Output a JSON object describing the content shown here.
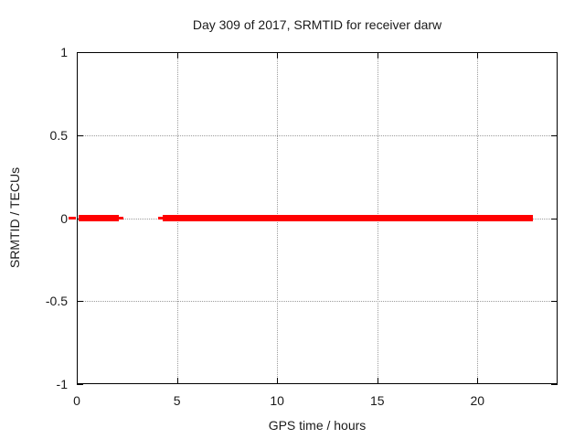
{
  "chart": {
    "title": "Day 309 of 2017, SRMTID for receiver darw",
    "xlabel": "GPS time / hours",
    "ylabel": "SRMTID / TECUs"
  },
  "chart_data": {
    "type": "line",
    "title": "Day 309 of 2017, SRMTID for receiver darw",
    "xlabel": "GPS time / hours",
    "ylabel": "SRMTID / TECUs",
    "xlim": [
      0,
      24
    ],
    "ylim": [
      -1,
      1
    ],
    "xticks": {
      "values": [
        0,
        5,
        10,
        15,
        20
      ],
      "labels": [
        "0",
        "5",
        "10",
        "15",
        "20"
      ]
    },
    "yticks": {
      "values": [
        -1,
        -0.5,
        0,
        0.5,
        1
      ],
      "labels": [
        "-1",
        "-0.5",
        "0",
        "0.5",
        "1"
      ]
    },
    "grid": {
      "x_values": [
        5,
        10,
        15,
        20
      ],
      "y_values": [
        -0.5,
        0,
        0.5
      ],
      "style": "dotted"
    },
    "legend_position": "none",
    "series": [
      {
        "name": "SRMTID",
        "color": "#ff0000",
        "constant_value": 0,
        "segments_hours": [
          {
            "start": 0.07,
            "end": 2.1,
            "y": 0,
            "weight": "thick"
          },
          {
            "start": 4.27,
            "end": 22.75,
            "y": 0,
            "weight": "thick"
          }
        ],
        "sparse_marks_hours": [
          {
            "start": -0.4,
            "end": -0.02,
            "y": 0,
            "weight": "thin"
          },
          {
            "start": 2.1,
            "end": 2.33,
            "y": 0,
            "weight": "thin"
          },
          {
            "start": 4.08,
            "end": 4.27,
            "y": 0,
            "weight": "thin"
          }
        ],
        "gaps_hours": [
          {
            "start": 2.33,
            "end": 4.08
          },
          {
            "start": 22.75,
            "end": 24.0
          }
        ]
      }
    ]
  },
  "colors": {
    "background": "#ffffff",
    "text": "#1a1a1a",
    "border": "#000000",
    "grid": "#9c9c9c",
    "series_red": "#ff0000"
  }
}
